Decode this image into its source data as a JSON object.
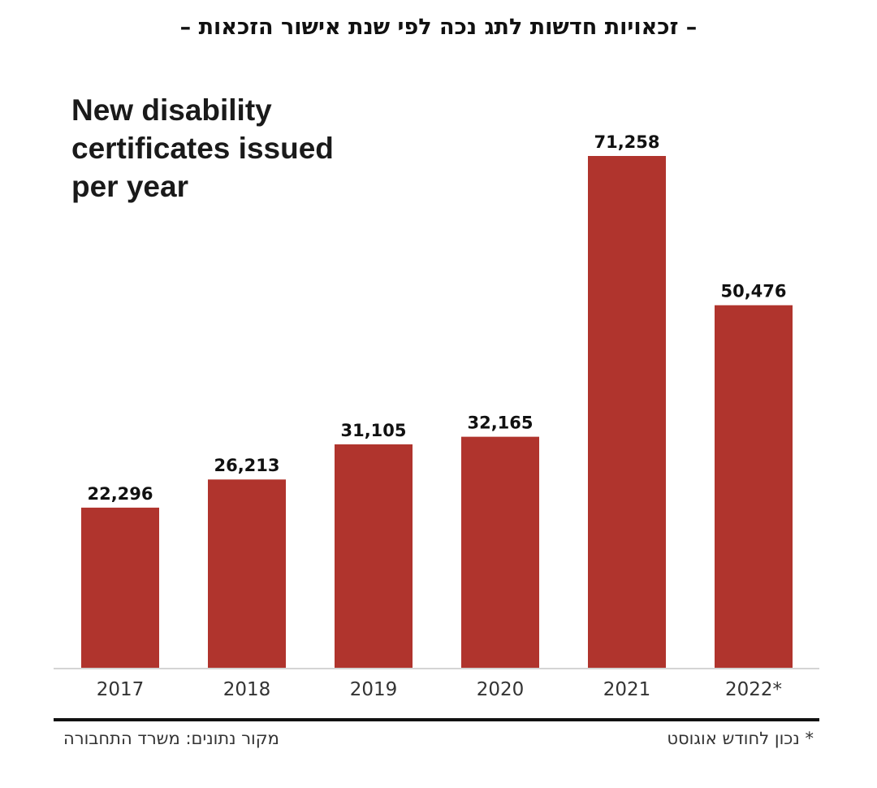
{
  "header": {
    "hebrew_title": "– זכאויות חדשות לתג נכה לפי שנת אישור הזכאות –"
  },
  "chart_data": {
    "type": "bar",
    "title": "New disability certificates issued per year",
    "title_lines": [
      "New disability",
      "certificates issued",
      "per year"
    ],
    "categories": [
      "2017",
      "2018",
      "2019",
      "2020",
      "2021",
      "2022*"
    ],
    "values": [
      22296,
      26213,
      31105,
      32165,
      71258,
      50476
    ],
    "value_labels": [
      "22,296",
      "26,213",
      "31,105",
      "32,165",
      "71,258",
      "50,476"
    ],
    "ylim": [
      0,
      80000
    ],
    "grid": false,
    "bar_color": "#b0342d",
    "baseline_color": "#d4d4d4"
  },
  "footer": {
    "source": "מקור נתונים: משרד התחבורה",
    "note": "* נכון לחודש אוגוסט"
  }
}
